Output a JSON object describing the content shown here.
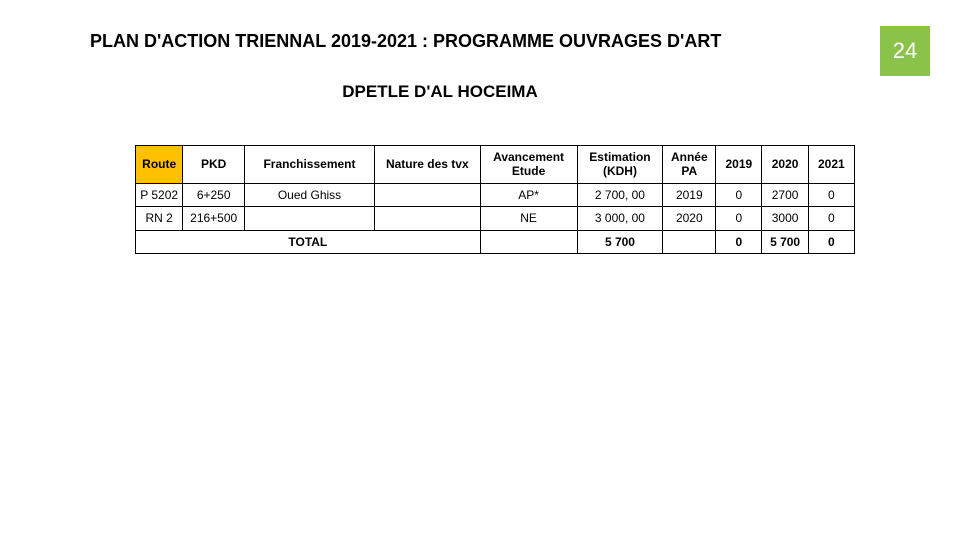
{
  "page_number": "24",
  "title": "PLAN D'ACTION TRIENNAL 2019-2021 : PROGRAMME OUVRAGES D'ART",
  "subtitle": "DPETLE D'AL HOCEIMA",
  "accent_color": "#8bc34a",
  "header_highlight_color": "#ffc000",
  "table": {
    "columns": [
      "Route",
      "PKD",
      "Franchissement",
      "Nature des tvx",
      "Avancement Etude",
      "Estimation (KDH)",
      "Année PA",
      "2019",
      "2020",
      "2021"
    ],
    "rows": [
      {
        "route": "P 5202",
        "pkd": "6+250",
        "franch": "Oued Ghiss",
        "nature": "",
        "avanc": "AP*",
        "estim": "2 700, 00",
        "annee": "2019",
        "y2019": "0",
        "y2020": "2700",
        "y2021": "0"
      },
      {
        "route": "RN 2",
        "pkd": "216+500",
        "franch": "",
        "nature": "",
        "avanc": "NE",
        "estim": "3 000, 00",
        "annee": "2020",
        "y2019": "0",
        "y2020": "3000",
        "y2021": "0"
      }
    ],
    "total": {
      "label": "TOTAL",
      "estim": "5 700",
      "annee": "",
      "y2019": "0",
      "y2020": "5 700",
      "y2021": "0"
    }
  }
}
